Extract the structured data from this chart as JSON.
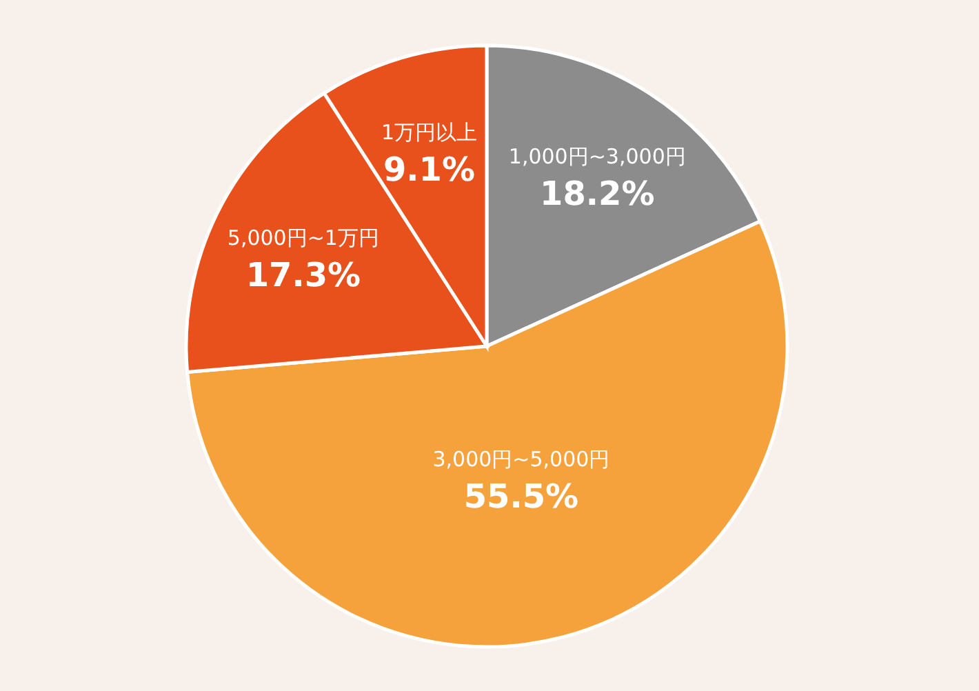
{
  "chart_data": {
    "type": "pie",
    "categories": [
      "1,000円~3,000円",
      "3,000円~5,000円",
      "5,000円~1万円",
      "1万円以上"
    ],
    "values": [
      18.2,
      55.5,
      17.3,
      9.1
    ],
    "colors": [
      "#8c8c8c",
      "#f5a23c",
      "#e8501c",
      "#e8501c"
    ],
    "value_labels": [
      "18.2%",
      "55.5%",
      "17.3%",
      "9.1%"
    ]
  }
}
